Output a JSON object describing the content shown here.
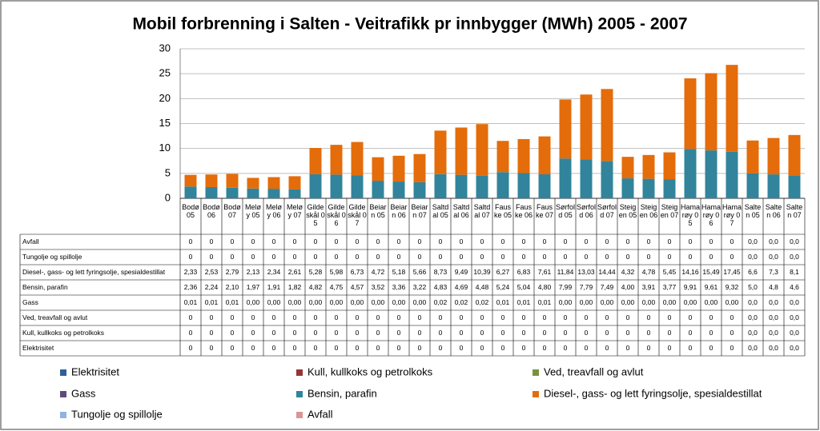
{
  "chart_data": {
    "type": "bar",
    "stacked": true,
    "title": "Mobil forbrenning i Salten - Veitrafikk pr innbygger (MWh) 2005 - 2007",
    "categories": [
      "Bodø 05",
      "Bodø 06",
      "Bodø 07",
      "Meløy 05",
      "Meløy 06",
      "Meløy 07",
      "Gildeskål 05",
      "Gildeskål 06",
      "Gildeskål 07",
      "Beiarn 05",
      "Beiarn 06",
      "Beiarn 07",
      "Saltdal 05",
      "Saltdal 06",
      "Saltdal 07",
      "Fauske 05",
      "Fauske 06",
      "Fauske 07",
      "Sørfold 05",
      "Sørfold 06",
      "Sørfold 07",
      "Steigen 05",
      "Steigen 06",
      "Steigen 07",
      "Hamarøy 05",
      "Hamarøy 06",
      "Hamarøy 07",
      "Salten 05",
      "Salten 06",
      "Salten 07"
    ],
    "series": [
      {
        "name": "Avfall",
        "color": "#d99694",
        "values": [
          0,
          0,
          0,
          0,
          0,
          0,
          0,
          0,
          0,
          0,
          0,
          0,
          0,
          0,
          0,
          0,
          0,
          0,
          0,
          0,
          0,
          0,
          0,
          0,
          0,
          0,
          0,
          0,
          0,
          0
        ],
        "value_labels": [
          "0",
          "0",
          "0",
          "0",
          "0",
          "0",
          "0",
          "0",
          "0",
          "0",
          "0",
          "0",
          "0",
          "0",
          "0",
          "0",
          "0",
          "0",
          "0",
          "0",
          "0",
          "0",
          "0",
          "0",
          "0",
          "0",
          "0",
          "0,0",
          "0,0",
          "0,0"
        ]
      },
      {
        "name": "Tungolje og spillolje",
        "color": "#8eb4e3",
        "values": [
          0,
          0,
          0,
          0,
          0,
          0,
          0,
          0,
          0,
          0,
          0,
          0,
          0,
          0,
          0,
          0,
          0,
          0,
          0,
          0,
          0,
          0,
          0,
          0,
          0,
          0,
          0,
          0,
          0,
          0
        ],
        "value_labels": [
          "0",
          "0",
          "0",
          "0",
          "0",
          "0",
          "0",
          "0",
          "0",
          "0",
          "0",
          "0",
          "0",
          "0",
          "0",
          "0",
          "0",
          "0",
          "0",
          "0",
          "0",
          "0",
          "0",
          "0",
          "0",
          "0",
          "0",
          "0,0",
          "0,0",
          "0,0"
        ]
      },
      {
        "name": "Diesel-, gass- og lett fyringsolje, spesialdestillat",
        "color": "#e46c0a",
        "values": [
          2.33,
          2.53,
          2.79,
          2.13,
          2.34,
          2.61,
          5.28,
          5.98,
          6.73,
          4.72,
          5.18,
          5.66,
          8.73,
          9.49,
          10.39,
          6.27,
          6.83,
          7.61,
          11.84,
          13.03,
          14.44,
          4.32,
          4.78,
          5.45,
          14.16,
          15.49,
          17.45,
          6.6,
          7.3,
          8.1
        ],
        "value_labels": [
          "2,33",
          "2,53",
          "2,79",
          "2,13",
          "2,34",
          "2,61",
          "5,28",
          "5,98",
          "6,73",
          "4,72",
          "5,18",
          "5,66",
          "8,73",
          "9,49",
          "10,39",
          "6,27",
          "6,83",
          "7,61",
          "11,84",
          "13,03",
          "14,44",
          "4,32",
          "4,78",
          "5,45",
          "14,16",
          "15,49",
          "17,45",
          "6,6",
          "7,3",
          "8,1"
        ]
      },
      {
        "name": "Bensin, parafin",
        "color": "#31849b",
        "values": [
          2.36,
          2.24,
          2.1,
          1.97,
          1.91,
          1.82,
          4.82,
          4.75,
          4.57,
          3.52,
          3.36,
          3.22,
          4.83,
          4.69,
          4.48,
          5.24,
          5.04,
          4.8,
          7.99,
          7.79,
          7.49,
          4.0,
          3.91,
          3.77,
          9.91,
          9.61,
          9.32,
          5.0,
          4.8,
          4.6
        ],
        "value_labels": [
          "2,36",
          "2,24",
          "2,10",
          "1,97",
          "1,91",
          "1,82",
          "4,82",
          "4,75",
          "4,57",
          "3,52",
          "3,36",
          "3,22",
          "4,83",
          "4,69",
          "4,48",
          "5,24",
          "5,04",
          "4,80",
          "7,99",
          "7,79",
          "7,49",
          "4,00",
          "3,91",
          "3,77",
          "9,91",
          "9,61",
          "9,32",
          "5,0",
          "4,8",
          "4,6"
        ]
      },
      {
        "name": "Gass",
        "color": "#604a7b",
        "values": [
          0.01,
          0.01,
          0.01,
          0,
          0,
          0,
          0,
          0,
          0,
          0,
          0,
          0,
          0.02,
          0.02,
          0.02,
          0.01,
          0.01,
          0.01,
          0,
          0,
          0,
          0,
          0,
          0,
          0,
          0,
          0,
          0,
          0,
          0
        ],
        "value_labels": [
          "0,01",
          "0,01",
          "0,01",
          "0,00",
          "0,00",
          "0,00",
          "0,00",
          "0,00",
          "0,00",
          "0,00",
          "0,00",
          "0,00",
          "0,02",
          "0,02",
          "0,02",
          "0,01",
          "0,01",
          "0,01",
          "0,00",
          "0,00",
          "0,00",
          "0,00",
          "0,00",
          "0,00",
          "0,00",
          "0,00",
          "0,00",
          "0,0",
          "0,0",
          "0,0"
        ]
      },
      {
        "name": "Ved, treavfall og avlut",
        "color": "#77933c",
        "values": [
          0,
          0,
          0,
          0,
          0,
          0,
          0,
          0,
          0,
          0,
          0,
          0,
          0,
          0,
          0,
          0,
          0,
          0,
          0,
          0,
          0,
          0,
          0,
          0,
          0,
          0,
          0,
          0,
          0,
          0
        ],
        "value_labels": [
          "0",
          "0",
          "0",
          "0",
          "0",
          "0",
          "0",
          "0",
          "0",
          "0",
          "0",
          "0",
          "0",
          "0",
          "0",
          "0",
          "0",
          "0",
          "0",
          "0",
          "0",
          "0",
          "0",
          "0",
          "0",
          "0",
          "0",
          "0,0",
          "0,0",
          "0,0"
        ]
      },
      {
        "name": "Kull, kullkoks og petrolkoks",
        "color": "#953735",
        "values": [
          0,
          0,
          0,
          0,
          0,
          0,
          0,
          0,
          0,
          0,
          0,
          0,
          0,
          0,
          0,
          0,
          0,
          0,
          0,
          0,
          0,
          0,
          0,
          0,
          0,
          0,
          0,
          0,
          0,
          0
        ],
        "value_labels": [
          "0",
          "0",
          "0",
          "0",
          "0",
          "0",
          "0",
          "0",
          "0",
          "0",
          "0",
          "0",
          "0",
          "0",
          "0",
          "0",
          "0",
          "0",
          "0",
          "0",
          "0",
          "0",
          "0",
          "0",
          "0",
          "0",
          "0",
          "0,0",
          "0,0",
          "0,0"
        ]
      },
      {
        "name": "Elektrisitet",
        "color": "#2f5f98",
        "values": [
          0,
          0,
          0,
          0,
          0,
          0,
          0,
          0,
          0,
          0,
          0,
          0,
          0,
          0,
          0,
          0,
          0,
          0,
          0,
          0,
          0,
          0,
          0,
          0,
          0,
          0,
          0,
          0,
          0,
          0
        ],
        "value_labels": [
          "0",
          "0",
          "0",
          "0",
          "0",
          "0",
          "0",
          "0",
          "0",
          "0",
          "0",
          "0",
          "0",
          "0",
          "0",
          "0",
          "0",
          "0",
          "0",
          "0",
          "0",
          "0",
          "0",
          "0",
          "0",
          "0",
          "0",
          "0,0",
          "0,0",
          "0,0"
        ]
      }
    ],
    "ylim": [
      0,
      30
    ],
    "yticks": [
      0,
      5,
      10,
      15,
      20,
      25,
      30
    ],
    "grid": true
  }
}
